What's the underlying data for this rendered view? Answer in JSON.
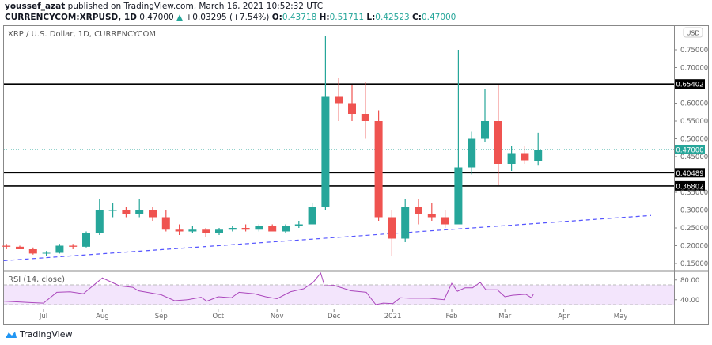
{
  "header": {
    "author": "youssef_azat",
    "published_text": "published on TradingView.com, March 16, 2021 10:52:32 UTC",
    "symbol": "CURRENCYCOM:XRPUSD, 1D",
    "last": "0.47000",
    "change": "+0.03295 (+7.54%)",
    "open_label": "O:",
    "open": "0.43718",
    "high_label": "H:",
    "high": "0.51711",
    "low_label": "L:",
    "low": "0.42523",
    "close_label": "C:",
    "close": "0.47000"
  },
  "chart": {
    "legend": "XRP / U.S. Dollar, 1D, CURRENCYCOM",
    "currency_label": "USD",
    "up_color": "#26a69a",
    "down_color": "#ef5350",
    "line_color": "#000000",
    "trend_color": "#5555ff",
    "rsi_color": "#ab47bc"
  },
  "footer": {
    "brand": "TradingView"
  },
  "chart_data": {
    "type": "candlestick",
    "interval_note": "1D",
    "price_axis": {
      "ticks": [
        "0.75000",
        "0.70000",
        "0.60000",
        "0.55000",
        "0.50000",
        "0.45000",
        "0.35000",
        "0.30000",
        "0.25000",
        "0.20000",
        "0.15000"
      ],
      "range": [
        0.13,
        0.82
      ]
    },
    "time_axis": {
      "ticks": [
        {
          "label": "Jul",
          "date": "2020-07-01"
        },
        {
          "label": "Aug",
          "date": "2020-08-01"
        },
        {
          "label": "Sep",
          "date": "2020-09-01"
        },
        {
          "label": "Oct",
          "date": "2020-10-01"
        },
        {
          "label": "Nov",
          "date": "2020-11-01"
        },
        {
          "label": "Dec",
          "date": "2020-12-01"
        },
        {
          "label": "2021",
          "date": "2021-01-01"
        },
        {
          "label": "Feb",
          "date": "2021-02-01"
        },
        {
          "label": "Mar",
          "date": "2021-03-01"
        },
        {
          "label": "Apr",
          "date": "2021-04-01"
        },
        {
          "label": "May",
          "date": "2021-05-01"
        }
      ]
    },
    "candles": [
      [
        "2020-06-08",
        0.2,
        0.205,
        0.19,
        0.197
      ],
      [
        "2020-06-15",
        0.197,
        0.2,
        0.19,
        0.19
      ],
      [
        "2020-06-22",
        0.19,
        0.195,
        0.175,
        0.178
      ],
      [
        "2020-06-29",
        0.178,
        0.185,
        0.172,
        0.18
      ],
      [
        "2020-07-06",
        0.18,
        0.205,
        0.178,
        0.2
      ],
      [
        "2020-07-13",
        0.2,
        0.205,
        0.19,
        0.197
      ],
      [
        "2020-07-20",
        0.197,
        0.24,
        0.195,
        0.235
      ],
      [
        "2020-07-27",
        0.235,
        0.33,
        0.23,
        0.3
      ],
      [
        "2020-08-03",
        0.3,
        0.32,
        0.28,
        0.3
      ],
      [
        "2020-08-10",
        0.3,
        0.31,
        0.28,
        0.29
      ],
      [
        "2020-08-17",
        0.29,
        0.33,
        0.28,
        0.3
      ],
      [
        "2020-08-24",
        0.3,
        0.31,
        0.27,
        0.28
      ],
      [
        "2020-08-31",
        0.28,
        0.3,
        0.24,
        0.245
      ],
      [
        "2020-09-07",
        0.245,
        0.26,
        0.23,
        0.24
      ],
      [
        "2020-09-14",
        0.24,
        0.255,
        0.235,
        0.245
      ],
      [
        "2020-09-21",
        0.245,
        0.25,
        0.225,
        0.235
      ],
      [
        "2020-09-28",
        0.235,
        0.25,
        0.23,
        0.245
      ],
      [
        "2020-10-05",
        0.245,
        0.255,
        0.24,
        0.25
      ],
      [
        "2020-10-12",
        0.25,
        0.26,
        0.24,
        0.245
      ],
      [
        "2020-10-19",
        0.245,
        0.26,
        0.24,
        0.255
      ],
      [
        "2020-10-26",
        0.255,
        0.26,
        0.24,
        0.24
      ],
      [
        "2020-11-02",
        0.24,
        0.26,
        0.235,
        0.255
      ],
      [
        "2020-11-09",
        0.255,
        0.27,
        0.25,
        0.26
      ],
      [
        "2020-11-16",
        0.26,
        0.32,
        0.26,
        0.31
      ],
      [
        "2020-11-23",
        0.31,
        0.79,
        0.3,
        0.62
      ],
      [
        "2020-11-30",
        0.62,
        0.67,
        0.55,
        0.6
      ],
      [
        "2020-12-07",
        0.6,
        0.65,
        0.55,
        0.57
      ],
      [
        "2020-12-14",
        0.57,
        0.66,
        0.5,
        0.55
      ],
      [
        "2020-12-21",
        0.55,
        0.58,
        0.27,
        0.28
      ],
      [
        "2020-12-28",
        0.28,
        0.3,
        0.17,
        0.22
      ],
      [
        "2021-01-04",
        0.22,
        0.33,
        0.21,
        0.31
      ],
      [
        "2021-01-11",
        0.31,
        0.33,
        0.26,
        0.29
      ],
      [
        "2021-01-18",
        0.29,
        0.32,
        0.27,
        0.28
      ],
      [
        "2021-01-25",
        0.28,
        0.3,
        0.25,
        0.26
      ],
      [
        "2021-02-01",
        0.26,
        0.75,
        0.26,
        0.42
      ],
      [
        "2021-02-08",
        0.42,
        0.52,
        0.4,
        0.5
      ],
      [
        "2021-02-15",
        0.5,
        0.64,
        0.49,
        0.55
      ],
      [
        "2021-02-22",
        0.55,
        0.65,
        0.37,
        0.43
      ],
      [
        "2021-03-01",
        0.43,
        0.48,
        0.41,
        0.46
      ],
      [
        "2021-03-08",
        0.46,
        0.48,
        0.43,
        0.44
      ],
      [
        "2021-03-15",
        0.437,
        0.517,
        0.425,
        0.47
      ]
    ],
    "horizontal_levels": [
      "0.65402",
      "0.40489",
      "0.36802"
    ],
    "last_price": "0.47000",
    "trendline": [
      [
        "2020-06-10",
        0.158
      ],
      [
        "2021-05-17",
        0.285
      ]
    ],
    "rsi": {
      "label": "RSI (14, close)",
      "ticks": [
        "80.00",
        "40.00"
      ],
      "band": [
        30,
        70
      ],
      "points": [
        [
          "2020-06-10",
          37
        ],
        [
          "2020-06-25",
          34
        ],
        [
          "2020-07-01",
          33
        ],
        [
          "2020-07-08",
          55
        ],
        [
          "2020-07-15",
          56
        ],
        [
          "2020-07-22",
          52
        ],
        [
          "2020-08-01",
          84
        ],
        [
          "2020-08-10",
          68
        ],
        [
          "2020-08-17",
          65
        ],
        [
          "2020-08-20",
          58
        ],
        [
          "2020-09-01",
          50
        ],
        [
          "2020-09-08",
          38
        ],
        [
          "2020-09-15",
          40
        ],
        [
          "2020-09-22",
          45
        ],
        [
          "2020-09-25",
          37
        ],
        [
          "2020-10-01",
          46
        ],
        [
          "2020-10-08",
          44
        ],
        [
          "2020-10-12",
          55
        ],
        [
          "2020-10-20",
          52
        ],
        [
          "2020-10-26",
          46
        ],
        [
          "2020-11-01",
          42
        ],
        [
          "2020-11-08",
          56
        ],
        [
          "2020-11-15",
          62
        ],
        [
          "2020-11-20",
          75
        ],
        [
          "2020-11-24",
          94
        ],
        [
          "2020-11-26",
          68
        ],
        [
          "2020-12-01",
          69
        ],
        [
          "2020-12-10",
          58
        ],
        [
          "2020-12-18",
          55
        ],
        [
          "2020-12-23",
          30
        ],
        [
          "2020-12-27",
          33
        ],
        [
          "2021-01-01",
          32
        ],
        [
          "2021-01-05",
          44
        ],
        [
          "2021-01-10",
          43
        ],
        [
          "2021-01-20",
          43
        ],
        [
          "2021-01-28",
          40
        ],
        [
          "2021-02-01",
          73
        ],
        [
          "2021-02-04",
          57
        ],
        [
          "2021-02-08",
          64
        ],
        [
          "2021-02-12",
          64
        ],
        [
          "2021-02-16",
          75
        ],
        [
          "2021-02-19",
          60
        ],
        [
          "2021-02-25",
          60
        ],
        [
          "2021-03-01",
          46
        ],
        [
          "2021-03-05",
          49
        ],
        [
          "2021-03-12",
          51
        ],
        [
          "2021-03-15",
          44
        ],
        [
          "2021-03-16",
          51
        ]
      ]
    }
  }
}
